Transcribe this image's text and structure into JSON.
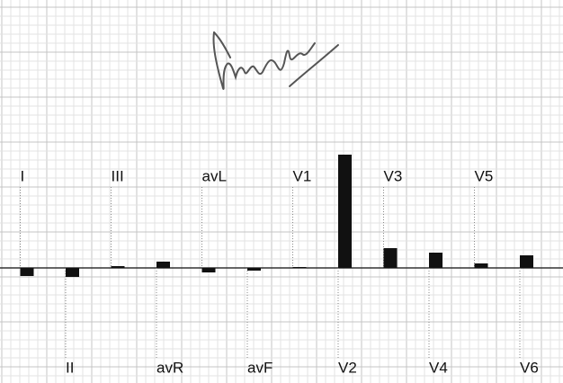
{
  "chart_data": {
    "type": "bar",
    "categories": [
      "I",
      "II",
      "III",
      "avR",
      "avL",
      "avF",
      "V1",
      "V2",
      "V3",
      "V4",
      "V5",
      "V6"
    ],
    "values": [
      -0.9,
      -1.0,
      0.2,
      0.7,
      -0.5,
      -0.3,
      0.1,
      12.6,
      2.2,
      1.7,
      0.5,
      1.4
    ],
    "color": "#111111",
    "grid": true
  }
}
